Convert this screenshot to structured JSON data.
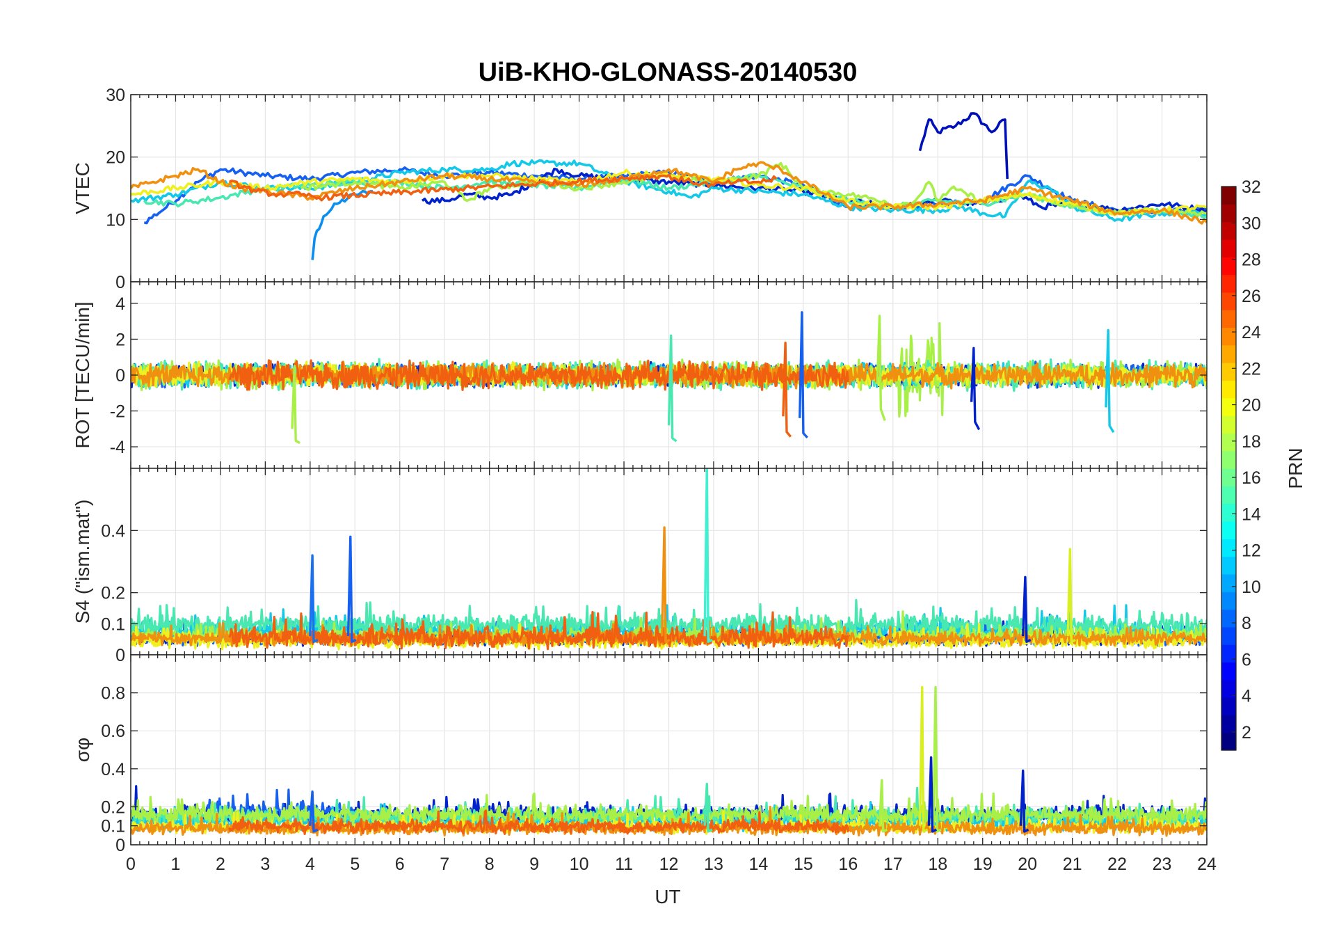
{
  "chart_data": {
    "type": "line",
    "title": "UiB-KHO-GLONASS-20140530",
    "xlabel": "UT",
    "xlim": [
      0,
      24
    ],
    "xticks": [
      "0",
      "1",
      "2",
      "3",
      "4",
      "5",
      "6",
      "7",
      "8",
      "9",
      "10",
      "11",
      "12",
      "13",
      "14",
      "15",
      "16",
      "17",
      "18",
      "19",
      "20",
      "21",
      "22",
      "23",
      "24"
    ],
    "grid": true,
    "colormap": "jet",
    "colorbar": {
      "label": "PRN",
      "range": [
        1,
        32
      ],
      "ticks": [
        "2",
        "4",
        "6",
        "8",
        "10",
        "12",
        "14",
        "16",
        "18",
        "20",
        "22",
        "24",
        "26",
        "28",
        "30",
        "32"
      ],
      "placement": "right"
    },
    "panels": [
      {
        "ylabel": "VTEC",
        "ylim": [
          0,
          30
        ],
        "yticks": [
          "0",
          "10",
          "20",
          "30"
        ],
        "series": [
          {
            "color": "#0010b8",
            "x": [
              17.6,
              17.8,
              18.0,
              18.4,
              18.8,
              19.2,
              19.5,
              19.55
            ],
            "y": [
              21,
              26,
              24,
              25,
              27,
              24,
              26,
              16.5
            ]
          },
          {
            "color": "#0a8ef0",
            "x": [
              4.05,
              4.1,
              4.3,
              4.6,
              5.0,
              5.4
            ],
            "y": [
              3.5,
              7,
              10.5,
              12.5,
              14,
              14.5
            ]
          },
          {
            "color": "#1560f0",
            "x": [
              0.3,
              0.8,
              1.5,
              2.0,
              3.0,
              4.0,
              5.0,
              6.0,
              7.0,
              8.0,
              9.0,
              10.0,
              11.0,
              12.0,
              13.0,
              14.0,
              15.0,
              16.0,
              17.0,
              18.0,
              19.0,
              20.0,
              21.0,
              22.0,
              23.0,
              24.0
            ],
            "y": [
              9.5,
              12,
              16,
              18,
              17,
              16.5,
              17.5,
              18,
              17,
              17.5,
              17,
              16.5,
              17,
              17.5,
              16,
              17,
              15.5,
              12,
              12,
              12.5,
              13,
              17,
              13,
              11.5,
              11,
              12
            ]
          },
          {
            "color": "#0022cc",
            "x": [
              6.5,
              7.0,
              7.5,
              8.0,
              8.5,
              9.0,
              9.5,
              10.0,
              14.0,
              15.0,
              16.0,
              17.0,
              18.0,
              19.0,
              19.8,
              20.3,
              21.0,
              22.0,
              23.0,
              24.0
            ],
            "y": [
              13,
              13,
              14,
              13.5,
              14,
              16,
              18,
              17,
              15,
              14.5,
              13,
              12,
              13,
              12.5,
              14,
              12,
              12.5,
              11.5,
              12.5,
              11.5
            ]
          },
          {
            "color": "#14c8e8",
            "x": [
              0.0,
              1.0,
              2.0,
              3.0,
              4.0,
              5.0,
              6.0,
              7.0,
              8.0,
              8.5,
              9.0,
              10.0,
              11.0,
              12.0,
              12.5,
              13.0,
              15.0,
              16.0,
              17.0,
              18.0,
              18.5,
              19.0,
              19.5,
              20.0,
              20.5,
              21.0,
              22.0,
              23.0,
              24.0
            ],
            "y": [
              13,
              14,
              16,
              15,
              15,
              16,
              17.5,
              18,
              18,
              19,
              19,
              19,
              16,
              14.5,
              13.5,
              15,
              14,
              12,
              11.5,
              11.5,
              12,
              11,
              10.5,
              16,
              15,
              12,
              10,
              11,
              11
            ]
          },
          {
            "color": "#48e8b0",
            "x": [
              0.3,
              1.0,
              2.0,
              3.0,
              4.0,
              5.0,
              6.0,
              7.0,
              8.0,
              9.0,
              10.0,
              11.0,
              12.0,
              13.0,
              14.0,
              15.0,
              16.0,
              17.0,
              18.0,
              19.0,
              20.0,
              21.0,
              22.0,
              23.0,
              24.0
            ],
            "y": [
              13,
              12.5,
              13.5,
              15,
              15.5,
              16,
              16,
              15,
              16,
              15.5,
              15,
              16.5,
              15,
              16,
              17,
              15,
              13,
              12,
              13,
              12.5,
              14,
              12,
              11,
              11.5,
              10.5
            ]
          },
          {
            "color": "#a8f048",
            "x": [
              3.8,
              5.0,
              6.0,
              7.0,
              7.5,
              8.0,
              9.0,
              10.0,
              11.0,
              12.0,
              13.0,
              14.0,
              14.5,
              15.0,
              16.0,
              16.8,
              17.0,
              17.5,
              17.8,
              18.0,
              18.3,
              19.0,
              20.0,
              21.0,
              22.0,
              23.0,
              24.0
            ],
            "y": [
              15,
              16,
              15,
              16,
              13,
              15,
              16,
              15,
              16,
              17,
              16,
              17,
              19,
              15,
              14,
              13,
              12,
              13,
              16,
              13,
              15,
              13,
              14,
              12,
              11,
              11.5,
              11
            ]
          },
          {
            "color": "#f0f020",
            "x": [
              0.0,
              1.0,
              2.0,
              3.0,
              4.0,
              5.0,
              6.0,
              7.0,
              8.0,
              9.0,
              10.0,
              11.0,
              12.0,
              13.0,
              14.0,
              15.0,
              16.0,
              17.0,
              18.0,
              19.0,
              20.0,
              21.0,
              22.0,
              23.0,
              24.0
            ],
            "y": [
              14,
              15,
              16,
              15,
              16,
              16.5,
              16,
              17,
              17,
              16.5,
              16,
              17.5,
              17,
              16.5,
              15.5,
              15,
              13,
              12,
              12,
              13,
              14,
              12.5,
              11,
              11.5,
              12
            ]
          },
          {
            "color": "#f09010",
            "x": [
              0.0,
              0.5,
              1.0,
              1.5,
              2.0,
              2.5,
              3.0,
              3.5,
              4.0,
              5.0,
              6.0,
              7.0,
              8.0,
              9.0,
              10.0,
              11.0,
              12.0,
              12.5,
              13.0,
              13.5,
              14.0,
              14.5,
              15.0,
              15.5,
              16.0,
              17.0,
              18.0,
              19.0,
              20.0,
              21.0,
              22.0,
              23.0,
              24.0
            ],
            "y": [
              15,
              16,
              17,
              18,
              16,
              15,
              14.5,
              14,
              13.5,
              15,
              16,
              17,
              16.5,
              16,
              15.5,
              16.5,
              18,
              17,
              16,
              18,
              19,
              18,
              16,
              14,
              12,
              12,
              12.5,
              13,
              15,
              13,
              11,
              11.5,
              9.5
            ]
          },
          {
            "color": "#f06010",
            "x": [
              2.2,
              2.8,
              3.3,
              3.8,
              4.2,
              11.9,
              12.5,
              13.0,
              13.5,
              14.0,
              14.4
            ],
            "y": [
              16,
              14.5,
              14,
              14,
              13.5,
              17,
              16,
              15.5,
              16,
              16,
              16.5
            ]
          }
        ]
      },
      {
        "ylabel": "ROT [TECU/min]",
        "ylim": [
          -5.2,
          5.2
        ],
        "yticks": [
          "-4",
          "-2",
          "0",
          "2",
          "4"
        ],
        "spikes": [
          {
            "color": "#1560f0",
            "x": 14.97,
            "min": -2.4,
            "max": 3.5
          },
          {
            "color": "#f06010",
            "x": 14.6,
            "min": -2.3,
            "max": 1.8
          },
          {
            "color": "#a8f048",
            "x": 3.65,
            "min": -3.0,
            "max": 0.5
          },
          {
            "color": "#48e8b0",
            "x": 12.05,
            "min": -2.8,
            "max": 2.2
          },
          {
            "color": "#a8f048",
            "x": 16.7,
            "min": -0.5,
            "max": 3.3
          },
          {
            "color": "#14c8e8",
            "x": 21.8,
            "min": -1.8,
            "max": 2.5
          },
          {
            "color": "#0022cc",
            "x": 18.8,
            "min": -1.5,
            "max": 1.5
          }
        ],
        "series": [
          {
            "color": "#a8f048",
            "band": 2.4,
            "xmin": 17.1,
            "xmax": 18.15
          },
          {
            "color": "#0022cc",
            "band": 0.5,
            "xmin": 0,
            "xmax": 24
          },
          {
            "color": "#1560f0",
            "band": 0.5,
            "xmin": 0,
            "xmax": 24
          },
          {
            "color": "#14c8e8",
            "band": 0.5,
            "xmin": 0,
            "xmax": 24
          },
          {
            "color": "#48e8b0",
            "band": 0.6,
            "xmin": 0,
            "xmax": 24
          },
          {
            "color": "#a8f048",
            "band": 0.6,
            "xmin": 0,
            "xmax": 24
          },
          {
            "color": "#f0f020",
            "band": 0.5,
            "xmin": 0,
            "xmax": 24
          },
          {
            "color": "#f09010",
            "band": 0.5,
            "xmin": 0,
            "xmax": 24
          },
          {
            "color": "#f06010",
            "band": 0.6,
            "xmin": 2.2,
            "xmax": 16.0
          }
        ]
      },
      {
        "ylabel": "S4 (\"ism.mat\")",
        "ylim": [
          0,
          0.6
        ],
        "yticks": [
          "0",
          "0.1",
          "0.2",
          "0.4"
        ],
        "spikes": [
          {
            "color": "#1a70f0",
            "x": 4.05,
            "min": 0.06,
            "max": 0.32
          },
          {
            "color": "#1560f0",
            "x": 4.9,
            "min": 0.06,
            "max": 0.38
          },
          {
            "color": "#f09010",
            "x": 11.9,
            "min": 0.06,
            "max": 0.41
          },
          {
            "color": "#40f0d0",
            "x": 12.85,
            "min": 0.06,
            "max": 0.6
          },
          {
            "color": "#0022cc",
            "x": 19.95,
            "min": 0.06,
            "max": 0.25
          },
          {
            "color": "#d8f020",
            "x": 20.95,
            "min": 0.06,
            "max": 0.34
          }
        ],
        "series": [
          {
            "color": "#0022cc",
            "base": 0.05,
            "band": 0.02,
            "xmin": 0,
            "xmax": 24
          },
          {
            "color": "#1560f0",
            "base": 0.05,
            "band": 0.02,
            "xmin": 0,
            "xmax": 24
          },
          {
            "color": "#14c8e8",
            "base": 0.07,
            "band": 0.03,
            "xmin": 0,
            "xmax": 24
          },
          {
            "color": "#48e8b0",
            "base": 0.09,
            "band": 0.03,
            "xmin": 0,
            "xmax": 24
          },
          {
            "color": "#a8f048",
            "base": 0.06,
            "band": 0.02,
            "xmin": 0,
            "xmax": 24
          },
          {
            "color": "#f0f020",
            "base": 0.04,
            "band": 0.02,
            "xmin": 0,
            "xmax": 24
          },
          {
            "color": "#f09010",
            "base": 0.05,
            "band": 0.02,
            "xmin": 0,
            "xmax": 24
          },
          {
            "color": "#f06010",
            "base": 0.05,
            "band": 0.03,
            "xmin": 2.2,
            "xmax": 16.0
          }
        ]
      },
      {
        "ylabel": "σφ",
        "ylim": [
          0,
          1.0
        ],
        "yticks": [
          "0",
          "0.1",
          "0.2",
          "0.4",
          "0.6",
          "0.8"
        ],
        "spikes": [
          {
            "color": "#d8f020",
            "x": 17.65,
            "min": 0.1,
            "max": 0.83
          },
          {
            "color": "#a8f048",
            "x": 17.95,
            "min": 0.1,
            "max": 0.83
          },
          {
            "color": "#0022cc",
            "x": 17.85,
            "min": 0.1,
            "max": 0.46
          },
          {
            "color": "#1560f0",
            "x": 4.05,
            "min": 0.1,
            "max": 0.28
          },
          {
            "color": "#48e8b0",
            "x": 12.85,
            "min": 0.1,
            "max": 0.32
          },
          {
            "color": "#0022cc",
            "x": 19.9,
            "min": 0.1,
            "max": 0.39
          },
          {
            "color": "#a8f048",
            "x": 16.75,
            "min": 0.1,
            "max": 0.34
          }
        ],
        "series": [
          {
            "color": "#0022cc",
            "base": 0.15,
            "band": 0.04,
            "xmin": 0,
            "xmax": 24
          },
          {
            "color": "#1560f0",
            "base": 0.17,
            "band": 0.04,
            "xmin": 1.7,
            "xmax": 5.0
          },
          {
            "color": "#14c8e8",
            "base": 0.11,
            "band": 0.04,
            "xmin": 0,
            "xmax": 24
          },
          {
            "color": "#48e8b0",
            "base": 0.14,
            "band": 0.04,
            "xmin": 0,
            "xmax": 24
          },
          {
            "color": "#a8f048",
            "base": 0.15,
            "band": 0.04,
            "xmin": 0,
            "xmax": 24
          },
          {
            "color": "#f0f020",
            "base": 0.09,
            "band": 0.03,
            "xmin": 0,
            "xmax": 24
          },
          {
            "color": "#f09010",
            "base": 0.08,
            "band": 0.03,
            "xmin": 0,
            "xmax": 24
          },
          {
            "color": "#f06010",
            "base": 0.09,
            "band": 0.03,
            "xmin": 2.2,
            "xmax": 16.0
          }
        ]
      }
    ]
  }
}
